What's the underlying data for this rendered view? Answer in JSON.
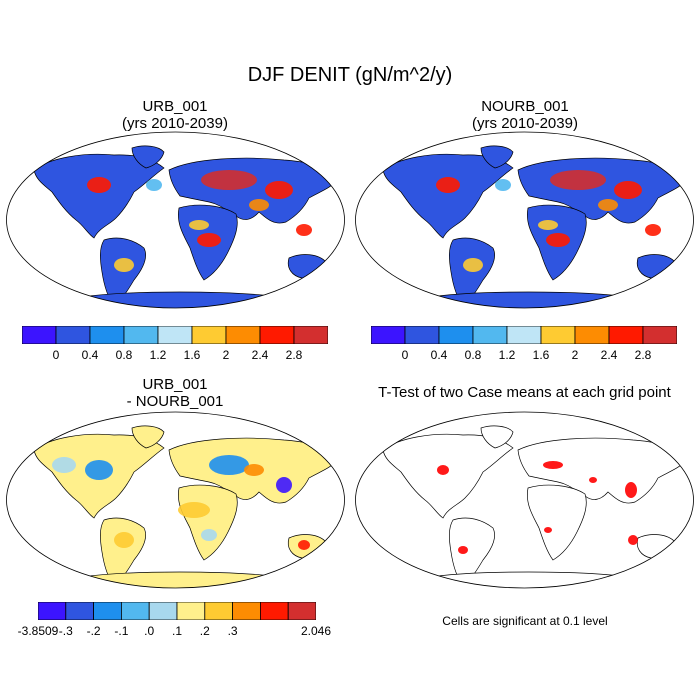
{
  "main_title": "DJF DENIT (gN/m^2/y)",
  "colors": {
    "scale1": [
      "#3c14ff",
      "#2f55e0",
      "#1e8fee",
      "#52b8ef",
      "#bfe5f6",
      "#fecb32",
      "#fd8c02",
      "#ff1a00",
      "#d32f2f"
    ],
    "diff": [
      "#3c14ff",
      "#2f55e0",
      "#1e8fee",
      "#52b8ef",
      "#a8d8ee",
      "#fff08c",
      "#fecb32",
      "#fd8c02",
      "#ff1a00",
      "#d32f2f"
    ],
    "ocean": "#ffffff",
    "coast": "#000000",
    "significant": "#ff0000"
  },
  "panels": {
    "p1": {
      "title_line1": "URB_001",
      "title_line2": "(yrs 2010-2039)"
    },
    "p2": {
      "title_line1": "NOURB_001",
      "title_line2": "(yrs 2010-2039)"
    },
    "p3": {
      "title_line1": "URB_001",
      "title_line2": "- NOURB_001"
    },
    "p4": {
      "title_line1": "T-Test of two Case means at each grid point",
      "note": "Cells are significant at 0.1 level"
    }
  },
  "colorbar_main": {
    "labels": [
      "0",
      "0.4",
      "0.8",
      "1.2",
      "1.6",
      "2",
      "2.4",
      "2.8"
    ]
  },
  "colorbar_diff": {
    "labels": [
      "-3.8509",
      "-.3",
      "-.2",
      "-.1",
      ".0",
      ".1",
      ".2",
      ".3",
      "2.046"
    ]
  }
}
